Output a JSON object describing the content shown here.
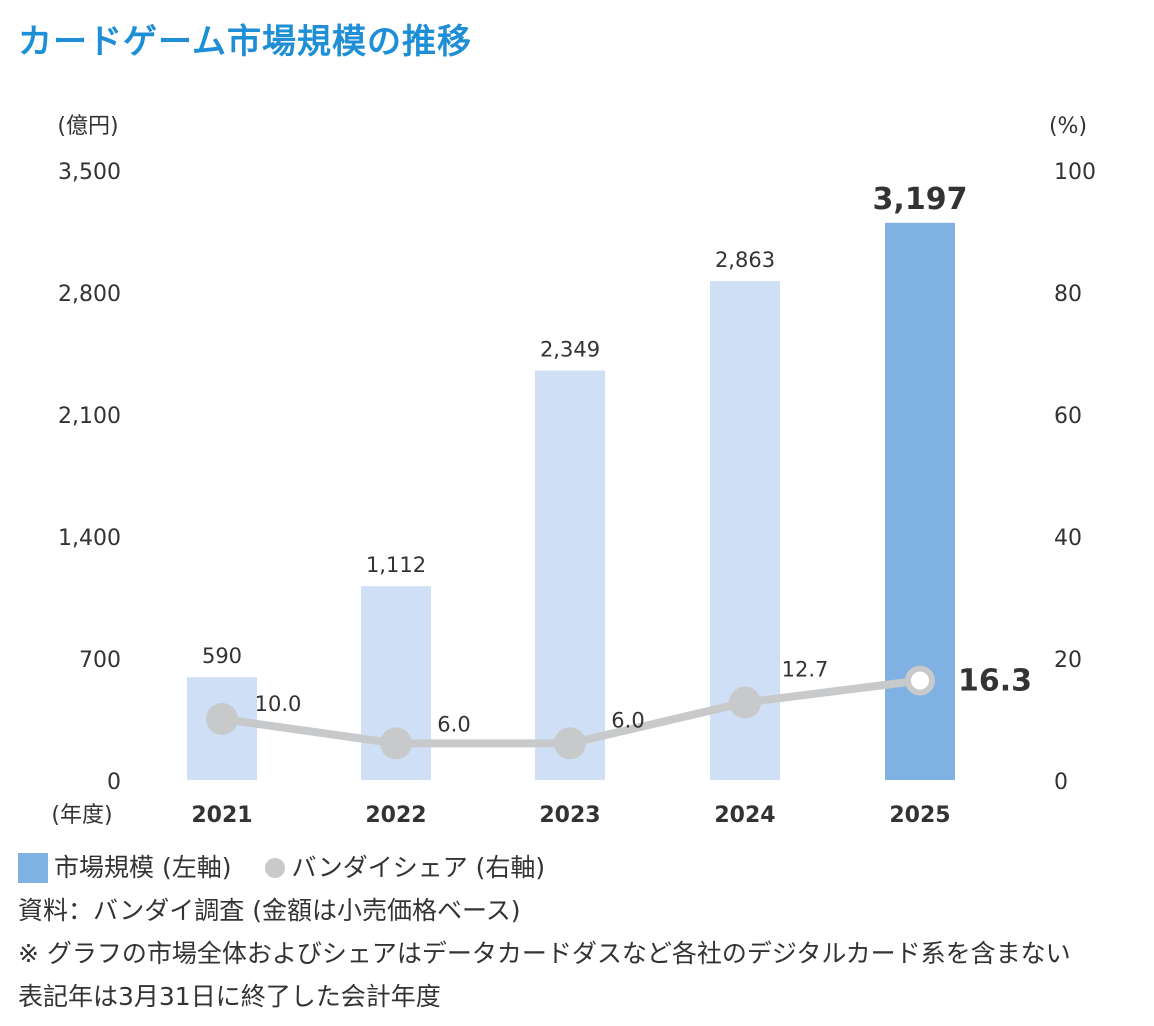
{
  "title": "カードゲーム市場規模の推移",
  "colors": {
    "title": "#1e8fd6",
    "bar_light": "#cfe0f6",
    "bar_highlight": "#7fb1e3",
    "line": "#c8c9cb",
    "text": "#333333"
  },
  "chart_data": {
    "type": "bar",
    "left_axis_unit": "(億円)",
    "right_axis_unit": "(%)",
    "x_axis_unit": "(年度)",
    "categories": [
      "2021",
      "2022",
      "2023",
      "2024",
      "2025"
    ],
    "left_ticks": [
      "0",
      "700",
      "1,400",
      "2,100",
      "2,800",
      "3,500"
    ],
    "right_ticks": [
      "0",
      "20",
      "40",
      "60",
      "80",
      "100"
    ],
    "ylim_left": [
      0,
      3500
    ],
    "ylim_right": [
      0,
      100
    ],
    "highlight_index": 4,
    "series": [
      {
        "name": "市場規模 (左軸)",
        "type": "bar",
        "axis": "left",
        "values": [
          590,
          1112,
          2349,
          2863,
          3197
        ],
        "labels": [
          "590",
          "1,112",
          "2,349",
          "2,863",
          "3,197"
        ]
      },
      {
        "name": "バンダイシェア (右軸)",
        "type": "line",
        "axis": "right",
        "values": [
          10.0,
          6.0,
          6.0,
          12.7,
          16.3
        ],
        "labels": [
          "10.0",
          "6.0",
          "6.0",
          "12.7",
          "16.3"
        ]
      }
    ]
  },
  "legend": {
    "bar_label": "市場規模 (左軸)",
    "line_label": "バンダイシェア (右軸)"
  },
  "notes": [
    "資料：バンダイ調査 (金額は小売価格ベース)",
    "※ グラフの市場全体およびシェアはデータカードダスなど各社のデジタルカード系を含まない",
    "表記年は3月31日に終了した会計年度"
  ]
}
